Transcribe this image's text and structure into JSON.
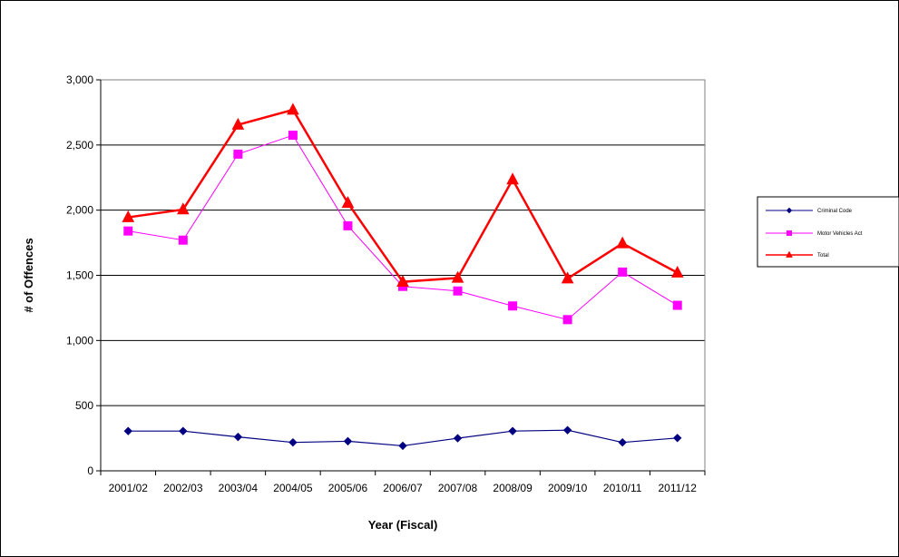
{
  "chart_data": {
    "type": "line",
    "title": "",
    "xlabel": "Year (Fiscal)",
    "ylabel": "# of Offences",
    "categories": [
      "2001/02",
      "2002/03",
      "2003/04",
      "2004/05",
      "2005/06",
      "2006/07",
      "2007/08",
      "2008/09",
      "2009/10",
      "2010/11",
      "2011/12"
    ],
    "ylim": [
      0,
      3000
    ],
    "yticks": [
      0,
      500,
      1000,
      1500,
      2000,
      2500,
      3000
    ],
    "ytick_labels": [
      "0",
      "500",
      "1,000",
      "1,500",
      "2,000",
      "2,500",
      "3,000"
    ],
    "grid": true,
    "legend_position": "right",
    "series": [
      {
        "name": "Criminal Code",
        "color": "#000080",
        "marker": "diamond",
        "values": [
          305,
          305,
          260,
          218,
          227,
          192,
          250,
          305,
          312,
          218,
          252
        ]
      },
      {
        "name": "Motor Vehicles Act",
        "color": "#ff00ff",
        "marker": "square",
        "values": [
          1840,
          1770,
          2430,
          2575,
          1880,
          1415,
          1380,
          1265,
          1160,
          1525,
          1270
        ]
      },
      {
        "name": "Total",
        "color": "#ff0000",
        "marker": "triangle",
        "values": [
          1945,
          2005,
          2655,
          2770,
          2055,
          1450,
          1480,
          2235,
          1475,
          1745,
          1520
        ]
      }
    ]
  }
}
